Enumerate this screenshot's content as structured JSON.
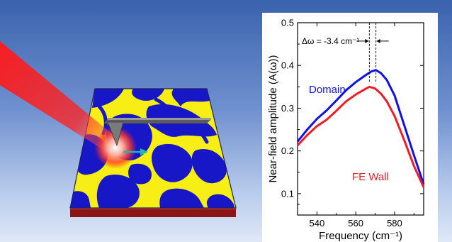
{
  "colors": {
    "domain": "#1010e6",
    "fe_wall": "#ee1c24",
    "film_yellow": "#f6ee14",
    "film_blue": "#1717c8",
    "substrate": "#8b1414",
    "laser": "#ff1a1a",
    "tip": "#7a7a7a"
  },
  "chart_data": {
    "type": "line",
    "xlabel": "Frequency (cm⁻¹)",
    "ylabel": "Near-field amplitude (A(ω))",
    "xlim": [
      530,
      595
    ],
    "ylim": [
      0.05,
      0.5
    ],
    "xticks": [
      "540",
      "560",
      "580"
    ],
    "yticks": [
      "0.1",
      "0.2",
      "0.3",
      "0.4",
      "0.5"
    ],
    "annotation": "Δω = -3.4 cm⁻¹",
    "peak_markers": [
      567.0,
      570.4
    ],
    "series": [
      {
        "name": "Domain",
        "color": "#1010e6",
        "x": [
          530,
          535,
          540,
          545,
          550,
          555,
          560,
          565,
          568,
          570.4,
          573,
          576,
          580,
          585,
          590,
          595
        ],
        "y": [
          0.222,
          0.25,
          0.275,
          0.295,
          0.318,
          0.342,
          0.361,
          0.377,
          0.386,
          0.389,
          0.382,
          0.366,
          0.33,
          0.26,
          0.19,
          0.122
        ]
      },
      {
        "name": "FE Wall",
        "color": "#ee1c24",
        "x": [
          530,
          535,
          540,
          545,
          550,
          555,
          560,
          565,
          567,
          570,
          573,
          576,
          580,
          585,
          590,
          595
        ],
        "y": [
          0.213,
          0.237,
          0.258,
          0.273,
          0.294,
          0.316,
          0.332,
          0.345,
          0.35,
          0.346,
          0.334,
          0.316,
          0.282,
          0.225,
          0.165,
          0.115
        ]
      }
    ]
  }
}
